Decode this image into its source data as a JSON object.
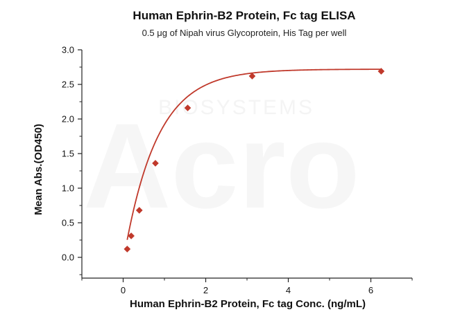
{
  "chart_data": {
    "type": "scatter",
    "title": "Human Ephrin-B2 Protein, Fc tag ELISA",
    "subtitle": "0.5 μg of Nipah virus Glycoprotein, His Tag per well",
    "xlabel": "Human Ephrin-B2 Protein, Fc tag Conc. (ng/mL)",
    "ylabel": "Mean Abs.(OD450)",
    "xlim": [
      -1,
      7
    ],
    "ylim": [
      -0.3,
      3.0
    ],
    "xticks": [
      0,
      2,
      4,
      6
    ],
    "yticks": [
      0.0,
      0.5,
      1.0,
      1.5,
      2.0,
      2.5,
      3.0
    ],
    "x_tick_labels": [
      "0",
      "2",
      "4",
      "6"
    ],
    "y_tick_labels": [
      "0.0",
      "0.5",
      "1.0",
      "1.5",
      "2.0",
      "2.5",
      "3.0"
    ],
    "grid": false,
    "series": [
      {
        "marker": "diamond",
        "color": "#c0392b",
        "x": [
          0.098,
          0.195,
          0.391,
          0.781,
          1.563,
          3.125,
          6.25
        ],
        "y": [
          0.12,
          0.31,
          0.68,
          1.36,
          2.16,
          2.62,
          2.69
        ],
        "fit_curve": true
      }
    ]
  },
  "watermark": {
    "small": "BIOSYSTEMS",
    "large": "Acro"
  }
}
